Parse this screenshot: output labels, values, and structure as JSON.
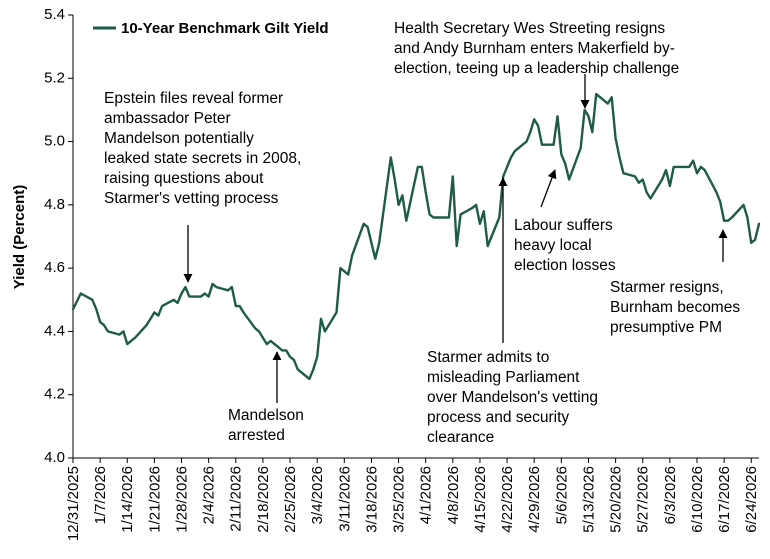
{
  "chart_data": {
    "type": "line",
    "title": "",
    "xlabel": "",
    "ylabel": "Yield (Percent)",
    "ylim": [
      4.0,
      5.4
    ],
    "yticks": [
      "4.0",
      "4.2",
      "4.4",
      "4.6",
      "4.8",
      "5.0",
      "5.2",
      "5.4"
    ],
    "xticks": [
      "12/31/2025",
      "1/7/2026",
      "1/14/2026",
      "1/21/2026",
      "1/28/2026",
      "2/4/2026",
      "2/11/2026",
      "2/18/2026",
      "2/25/2026",
      "3/4/2026",
      "3/11/2026",
      "3/18/2026",
      "3/25/2026",
      "4/1/2026",
      "4/8/2026",
      "4/15/2026",
      "4/22/2026",
      "4/29/2026",
      "5/6/2026",
      "5/13/2026",
      "5/20/2026",
      "5/27/2026",
      "6/3/2026",
      "6/10/2026",
      "6/17/2026",
      "6/24/2026"
    ],
    "grid": false,
    "legend_position": "top-left",
    "color": "#1e5c45",
    "series": [
      {
        "name": "10-Year Benchmark Gilt Yield",
        "points": [
          [
            "2025-12-31",
            4.47
          ],
          [
            "2026-01-02",
            4.52
          ],
          [
            "2026-01-05",
            4.5
          ],
          [
            "2026-01-06",
            4.47
          ],
          [
            "2026-01-07",
            4.43
          ],
          [
            "2026-01-08",
            4.42
          ],
          [
            "2026-01-09",
            4.4
          ],
          [
            "2026-01-12",
            4.39
          ],
          [
            "2026-01-13",
            4.4
          ],
          [
            "2026-01-14",
            4.36
          ],
          [
            "2026-01-15",
            4.37
          ],
          [
            "2026-01-16",
            4.38
          ],
          [
            "2026-01-19",
            4.42
          ],
          [
            "2026-01-20",
            4.44
          ],
          [
            "2026-01-21",
            4.46
          ],
          [
            "2026-01-22",
            4.45
          ],
          [
            "2026-01-23",
            4.48
          ],
          [
            "2026-01-26",
            4.5
          ],
          [
            "2026-01-27",
            4.49
          ],
          [
            "2026-01-28",
            4.52
          ],
          [
            "2026-01-29",
            4.54
          ],
          [
            "2026-01-30",
            4.51
          ],
          [
            "2026-02-02",
            4.51
          ],
          [
            "2026-02-03",
            4.52
          ],
          [
            "2026-02-04",
            4.51
          ],
          [
            "2026-02-05",
            4.55
          ],
          [
            "2026-02-06",
            4.54
          ],
          [
            "2026-02-09",
            4.53
          ],
          [
            "2026-02-10",
            4.54
          ],
          [
            "2026-02-11",
            4.48
          ],
          [
            "2026-02-12",
            4.48
          ],
          [
            "2026-02-13",
            4.46
          ],
          [
            "2026-02-16",
            4.41
          ],
          [
            "2026-02-17",
            4.4
          ],
          [
            "2026-02-18",
            4.38
          ],
          [
            "2026-02-19",
            4.36
          ],
          [
            "2026-02-20",
            4.37
          ],
          [
            "2026-02-23",
            4.34
          ],
          [
            "2026-02-24",
            4.34
          ],
          [
            "2026-02-25",
            4.32
          ],
          [
            "2026-02-26",
            4.31
          ],
          [
            "2026-02-27",
            4.28
          ],
          [
            "2026-03-02",
            4.25
          ],
          [
            "2026-03-03",
            4.28
          ],
          [
            "2026-03-04",
            4.32
          ],
          [
            "2026-03-05",
            4.44
          ],
          [
            "2026-03-06",
            4.4
          ],
          [
            "2026-03-09",
            4.46
          ],
          [
            "2026-03-10",
            4.6
          ],
          [
            "2026-03-11",
            4.59
          ],
          [
            "2026-03-12",
            4.58
          ],
          [
            "2026-03-13",
            4.64
          ],
          [
            "2026-03-16",
            4.74
          ],
          [
            "2026-03-17",
            4.73
          ],
          [
            "2026-03-18",
            4.68
          ],
          [
            "2026-03-19",
            4.63
          ],
          [
            "2026-03-20",
            4.68
          ],
          [
            "2026-03-23",
            4.95
          ],
          [
            "2026-03-24",
            4.88
          ],
          [
            "2026-03-25",
            4.8
          ],
          [
            "2026-03-26",
            4.83
          ],
          [
            "2026-03-27",
            4.75
          ],
          [
            "2026-03-30",
            4.92
          ],
          [
            "2026-03-31",
            4.92
          ],
          [
            "2026-04-01",
            4.84
          ],
          [
            "2026-04-02",
            4.77
          ],
          [
            "2026-04-03",
            4.76
          ],
          [
            "2026-04-06",
            4.76
          ],
          [
            "2026-04-07",
            4.76
          ],
          [
            "2026-04-08",
            4.89
          ],
          [
            "2026-04-09",
            4.67
          ],
          [
            "2026-04-10",
            4.77
          ],
          [
            "2026-04-13",
            4.79
          ],
          [
            "2026-04-14",
            4.8
          ],
          [
            "2026-04-15",
            4.74
          ],
          [
            "2026-04-16",
            4.78
          ],
          [
            "2026-04-17",
            4.67
          ],
          [
            "2026-04-20",
            4.76
          ],
          [
            "2026-04-21",
            4.89
          ],
          [
            "2026-04-22",
            4.92
          ],
          [
            "2026-04-23",
            4.95
          ],
          [
            "2026-04-24",
            4.97
          ],
          [
            "2026-04-27",
            5.0
          ],
          [
            "2026-04-28",
            5.03
          ],
          [
            "2026-04-29",
            5.07
          ],
          [
            "2026-04-30",
            5.05
          ],
          [
            "2026-05-01",
            4.99
          ],
          [
            "2026-05-04",
            4.99
          ],
          [
            "2026-05-05",
            5.08
          ],
          [
            "2026-05-06",
            4.96
          ],
          [
            "2026-05-07",
            4.93
          ],
          [
            "2026-05-08",
            4.88
          ],
          [
            "2026-05-11",
            4.98
          ],
          [
            "2026-05-12",
            5.1
          ],
          [
            "2026-05-13",
            5.08
          ],
          [
            "2026-05-14",
            5.03
          ],
          [
            "2026-05-15",
            5.15
          ],
          [
            "2026-05-18",
            5.12
          ],
          [
            "2026-05-19",
            5.14
          ],
          [
            "2026-05-20",
            5.01
          ],
          [
            "2026-05-21",
            4.95
          ],
          [
            "2026-05-22",
            4.9
          ],
          [
            "2026-05-25",
            4.89
          ],
          [
            "2026-05-26",
            4.87
          ],
          [
            "2026-05-27",
            4.88
          ],
          [
            "2026-05-28",
            4.84
          ],
          [
            "2026-05-29",
            4.82
          ],
          [
            "2026-06-01",
            4.88
          ],
          [
            "2026-06-02",
            4.91
          ],
          [
            "2026-06-03",
            4.86
          ],
          [
            "2026-06-04",
            4.92
          ],
          [
            "2026-06-05",
            4.92
          ],
          [
            "2026-06-08",
            4.92
          ],
          [
            "2026-06-09",
            4.94
          ],
          [
            "2026-06-10",
            4.9
          ],
          [
            "2026-06-11",
            4.92
          ],
          [
            "2026-06-12",
            4.91
          ],
          [
            "2026-06-15",
            4.84
          ],
          [
            "2026-06-16",
            4.81
          ],
          [
            "2026-06-17",
            4.75
          ],
          [
            "2026-06-18",
            4.75
          ],
          [
            "2026-06-19",
            4.76
          ],
          [
            "2026-06-22",
            4.8
          ],
          [
            "2026-06-23",
            4.76
          ],
          [
            "2026-06-24",
            4.68
          ],
          [
            "2026-06-25",
            4.69
          ],
          [
            "2026-06-26",
            4.74
          ]
        ]
      }
    ],
    "annotations": [
      {
        "lines": [
          "Epstein files reveal former",
          "ambassador Peter",
          "Mandelson potentially",
          "leaked state secrets in 2008,",
          "raising questions about",
          "Starmer's vetting process"
        ],
        "date": "2026-01-30",
        "value": 4.54
      },
      {
        "lines": [
          "Mandelson",
          "arrested"
        ],
        "date": "2026-02-24",
        "value": 4.34
      },
      {
        "lines": [
          "Health Secretary Wes Streeting resigns",
          "and Andy Burnham enters Makerfield by-",
          "election, teeing up a leadership challenge"
        ],
        "date": "2026-05-13",
        "value": 5.1
      },
      {
        "lines": [
          "Labour suffers",
          "heavy local",
          "election losses"
        ],
        "date": "2026-05-08",
        "value": 4.93
      },
      {
        "lines": [
          "Starmer admits to",
          "misleading Parliament",
          "over Mandelson's vetting",
          "process and security",
          "clearance"
        ],
        "date": "2026-04-22",
        "value": 4.89
      },
      {
        "lines": [
          "Starmer resigns,",
          "Burnham becomes",
          "presumptive PM"
        ],
        "date": "2026-06-18",
        "value": 4.75
      }
    ]
  }
}
